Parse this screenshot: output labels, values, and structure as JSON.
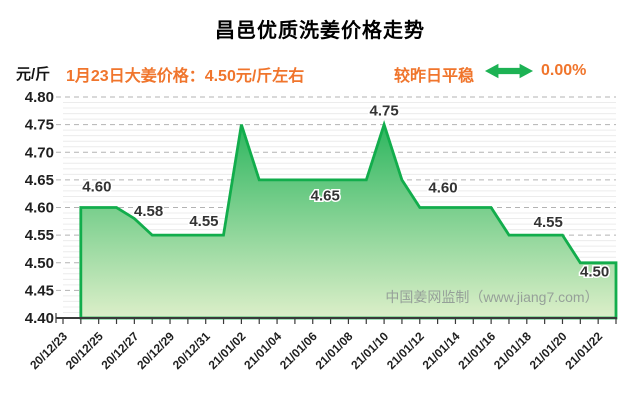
{
  "title": "昌邑优质洗姜价格走势",
  "header": {
    "unit_label": "元/斤",
    "price_note": "1月23日大姜价格：4.50元/斤左右",
    "trend_label": "较昨日平稳",
    "trend_icon": "double-headed-horizontal-arrow",
    "trend_value": "0.00%"
  },
  "watermark": "中国姜网监制（www.jiang7.com）",
  "colors": {
    "orange": "#f0752c",
    "arrow_green": "#1db254",
    "line_green": "#12ad4c",
    "fill_top": "#2eb65f",
    "fill_bottom": "#dcefc9",
    "grid_major": "#b3b3b3",
    "grid_minor": "#ececec",
    "axis": "#3a3a3a",
    "tick_text": "#1f1f1f",
    "point_label_text": "#333333",
    "watermark_gray": "#96a099",
    "title_black": "#000000"
  },
  "chart_data": {
    "type": "area",
    "title": "昌邑优质洗姜价格走势",
    "xlabel": "",
    "ylabel": "元/斤",
    "ylim": [
      4.4,
      4.8
    ],
    "y_tick_step": 0.05,
    "y_ticks": [
      4.4,
      4.45,
      4.5,
      4.55,
      4.6,
      4.65,
      4.7,
      4.75,
      4.8
    ],
    "grid": "horizontal-dashed-major-with-light-minor",
    "legend": "none",
    "x_axis_origin_date": "20/12/23",
    "x_tick_labels": [
      "20/12/23",
      "20/12/25",
      "20/12/27",
      "20/12/29",
      "20/12/31",
      "21/01/02",
      "21/01/04",
      "21/01/06",
      "21/01/08",
      "21/01/10",
      "21/01/12",
      "21/01/14",
      "21/01/16",
      "21/01/18",
      "21/01/20",
      "21/01/22"
    ],
    "x_label_every_days": 2,
    "series_start_day_offset": 1,
    "dates": [
      "20/12/24",
      "20/12/25",
      "20/12/26",
      "20/12/27",
      "20/12/28",
      "20/12/29",
      "20/12/30",
      "20/12/31",
      "21/01/01",
      "21/01/02",
      "21/01/03",
      "21/01/04",
      "21/01/05",
      "21/01/06",
      "21/01/07",
      "21/01/08",
      "21/01/09",
      "21/01/10",
      "21/01/11",
      "21/01/12",
      "21/01/13",
      "21/01/14",
      "21/01/15",
      "21/01/16",
      "21/01/17",
      "21/01/18",
      "21/01/19",
      "21/01/20",
      "21/01/21",
      "21/01/22",
      "21/01/23"
    ],
    "values": [
      4.6,
      4.6,
      4.6,
      4.58,
      4.55,
      4.55,
      4.55,
      4.55,
      4.55,
      4.75,
      4.65,
      4.65,
      4.65,
      4.65,
      4.65,
      4.65,
      4.65,
      4.75,
      4.65,
      4.6,
      4.6,
      4.6,
      4.6,
      4.6,
      4.55,
      4.55,
      4.55,
      4.55,
      4.5,
      4.5,
      4.5
    ],
    "point_labels": [
      {
        "text": "4.60",
        "day": 1.9,
        "value": 4.638
      },
      {
        "text": "4.58",
        "day": 4.8,
        "value": 4.594
      },
      {
        "text": "4.55",
        "day": 7.9,
        "value": 4.576
      },
      {
        "text": "4.65",
        "day": 14.7,
        "value": 4.622
      },
      {
        "text": "4.75",
        "day": 18.0,
        "value": 4.776
      },
      {
        "text": "4.60",
        "day": 21.3,
        "value": 4.636
      },
      {
        "text": "4.55",
        "day": 27.2,
        "value": 4.574
      },
      {
        "text": "4.50",
        "day": 29.8,
        "value": 4.484
      }
    ]
  }
}
